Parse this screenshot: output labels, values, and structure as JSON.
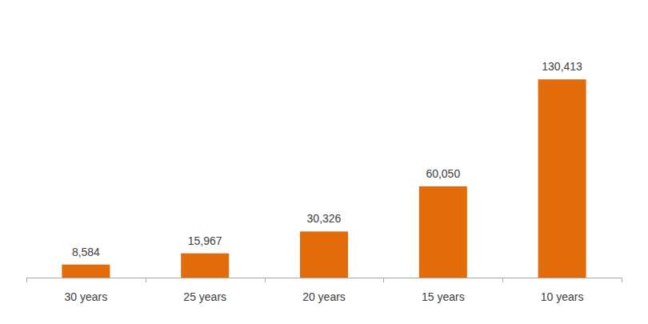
{
  "chart_data": {
    "type": "bar",
    "categories": [
      "30 years",
      "25 years",
      "20 years",
      "15 years",
      "10 years"
    ],
    "values": [
      8584,
      15967,
      30326,
      60050,
      130413
    ],
    "value_labels": [
      "8,584",
      "15,967",
      "30,326",
      "60,050",
      "130,413"
    ],
    "color": "#e36c0a",
    "ylim": [
      0,
      160000
    ],
    "grid": false,
    "data_labels": true,
    "tick_labels": "x"
  }
}
